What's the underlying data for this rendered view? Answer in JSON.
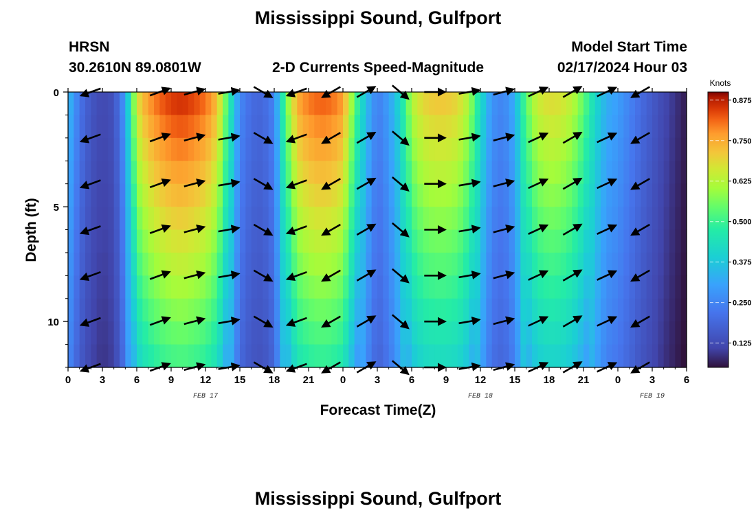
{
  "header": {
    "title": "Mississippi Sound, Gulfport",
    "station_id": "HRSN",
    "station_coords": "30.2610N  89.0801W",
    "subtitle": "2-D Currents Speed-Magnitude",
    "model_start_label": "Model Start Time",
    "model_start_value": "02/17/2024 Hour 03",
    "footer_title": "Mississippi Sound, Gulfport"
  },
  "chart_data": {
    "type": "heatmap",
    "title": "2-D Currents Speed-Magnitude",
    "xlabel": "Forecast Time(Z)",
    "ylabel": "Depth (ft)",
    "x_hours_from_start": [
      0,
      54
    ],
    "y_depth_range_ft": [
      0,
      12
    ],
    "x_ticks": [
      "0",
      "3",
      "6",
      "9",
      "12",
      "15",
      "18",
      "21",
      "0",
      "3",
      "6",
      "9",
      "12",
      "15",
      "18",
      "21",
      "0",
      "3",
      "6"
    ],
    "y_ticks": [
      "0",
      "5",
      "10"
    ],
    "y_tick_values": [
      0,
      5,
      10
    ],
    "date_labels": [
      {
        "text": "FEB 17",
        "hour": 12
      },
      {
        "text": "FEB 18",
        "hour": 36
      },
      {
        "text": "FEB 19",
        "hour": 51
      }
    ],
    "colorbar": {
      "unit": "Knots",
      "range": [
        0.05,
        0.9
      ],
      "ticks": [
        "0.875",
        "0.750",
        "0.625",
        "0.500",
        "0.375",
        "0.250",
        "0.125"
      ],
      "tick_values": [
        0.875,
        0.75,
        0.625,
        0.5,
        0.375,
        0.25,
        0.125
      ]
    },
    "surface_speed_knots": {
      "hours": [
        0,
        1,
        2,
        3,
        4,
        5,
        6,
        7,
        8,
        9,
        10,
        11,
        12,
        13,
        14,
        15,
        16,
        17,
        18,
        19,
        20,
        21,
        22,
        23,
        24,
        25,
        26,
        27,
        28,
        29,
        30,
        31,
        32,
        33,
        34,
        35,
        36,
        37,
        38,
        39,
        40,
        41,
        42,
        43,
        44,
        45,
        46,
        47,
        48,
        49,
        50,
        51,
        52,
        53,
        54
      ],
      "values": [
        0.36,
        0.22,
        0.15,
        0.12,
        0.14,
        0.3,
        0.68,
        0.78,
        0.83,
        0.86,
        0.87,
        0.85,
        0.82,
        0.74,
        0.5,
        0.26,
        0.2,
        0.19,
        0.25,
        0.55,
        0.76,
        0.81,
        0.83,
        0.82,
        0.78,
        0.55,
        0.36,
        0.24,
        0.3,
        0.42,
        0.63,
        0.7,
        0.72,
        0.72,
        0.7,
        0.62,
        0.43,
        0.28,
        0.25,
        0.33,
        0.55,
        0.66,
        0.69,
        0.68,
        0.64,
        0.55,
        0.42,
        0.33,
        0.3,
        0.25,
        0.2,
        0.16,
        0.12,
        0.09,
        0.06
      ]
    },
    "vector_depths_ft": [
      0,
      2,
      4,
      6,
      8,
      10,
      12
    ],
    "vector_hours": [
      2,
      8,
      11,
      14,
      17,
      20,
      23,
      26,
      29,
      32,
      35,
      38,
      41,
      44,
      47,
      50
    ],
    "vector_direction_deg": [
      200,
      20,
      15,
      10,
      330,
      200,
      210,
      30,
      320,
      0,
      10,
      15,
      25,
      30,
      25,
      210
    ]
  }
}
